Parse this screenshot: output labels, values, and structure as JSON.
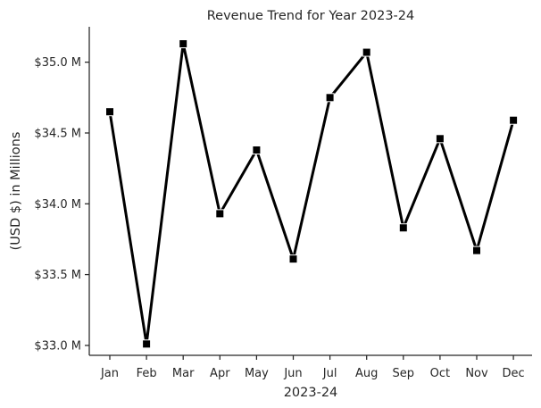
{
  "chart_data": {
    "type": "line",
    "title": "Revenue Trend for Year 2023-24",
    "xlabel": "2023-24",
    "ylabel": "(USD $) in Millions",
    "categories": [
      "Jan",
      "Feb",
      "Mar",
      "Apr",
      "May",
      "Jun",
      "Jul",
      "Aug",
      "Sep",
      "Oct",
      "Nov",
      "Dec"
    ],
    "series": [
      {
        "values": [
          34.65,
          33.01,
          35.13,
          33.93,
          34.38,
          33.61,
          34.75,
          35.07,
          33.83,
          34.46,
          33.67,
          34.59
        ],
        "color": "#000000",
        "marker": "square"
      }
    ],
    "ylim": [
      32.93,
      35.25
    ],
    "yticks": [
      33.0,
      33.5,
      34.0,
      34.5,
      35.0
    ],
    "ytick_labels": [
      "$33.0 M",
      "$33.5 M",
      "$34.0 M",
      "$34.5 M",
      "$35.0 M"
    ],
    "grid": false,
    "legend": "none"
  }
}
